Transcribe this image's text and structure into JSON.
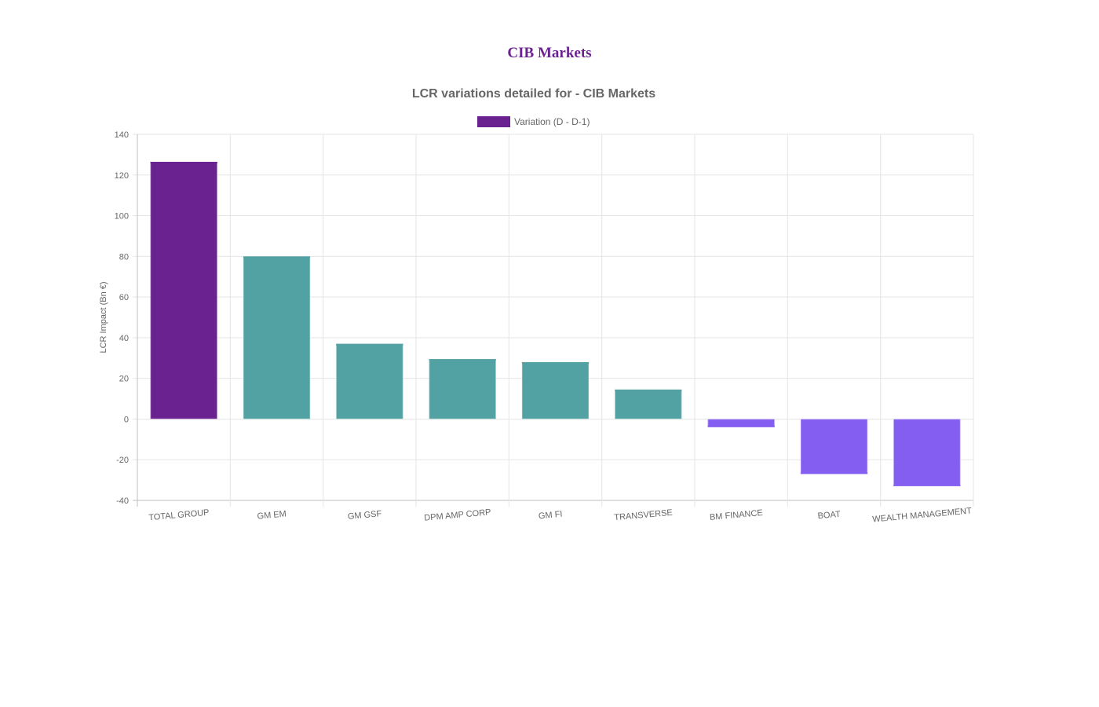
{
  "page": {
    "heading": "CIB Markets"
  },
  "colors": {
    "heading": "#6a2290",
    "total": "#6a2290",
    "positive": "#52a1a3",
    "negative": "#845ef0",
    "grid": "#e5e5e5",
    "axis": "#bfbfbf",
    "text": "#666666"
  },
  "chart_data": {
    "type": "bar",
    "title": "LCR variations detailed for - CIB Markets",
    "ylabel": "LCR Impact (Bn €)",
    "xlabel": "",
    "ylim": [
      -40,
      140
    ],
    "ytick_step": 20,
    "grid": true,
    "legend_position": "top",
    "categories": [
      "TOTAL GROUP",
      "GM EM",
      "GM GSF",
      "DPM AMP CORP",
      "GM FI",
      "TRANSVERSE",
      "BM FINANCE",
      "BOAT",
      "WEALTH MANAGEMENT"
    ],
    "series": [
      {
        "name": "Variation (D - D-1)",
        "values": [
          126.5,
          80,
          37,
          29.5,
          28,
          14.5,
          -4,
          -27,
          -33
        ],
        "bar_colors": [
          "#6a2290",
          "#52a1a3",
          "#52a1a3",
          "#52a1a3",
          "#52a1a3",
          "#52a1a3",
          "#845ef0",
          "#845ef0",
          "#845ef0"
        ]
      }
    ]
  }
}
